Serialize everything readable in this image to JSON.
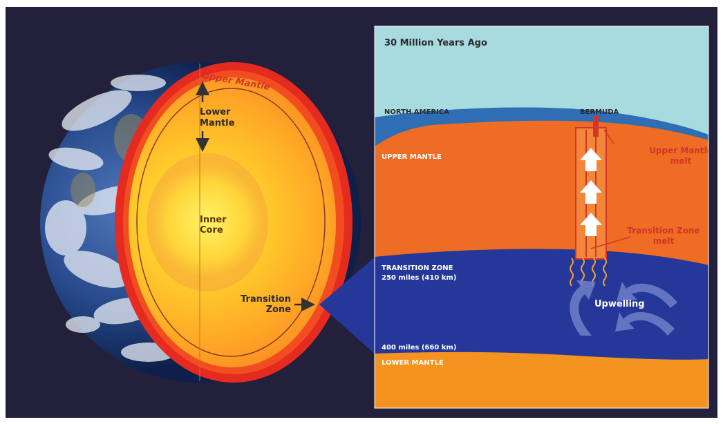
{
  "earth_cutaway": {
    "upper_mantle_label": "Upper Mantle",
    "lower_mantle_label": [
      "Lower",
      "Mantle"
    ],
    "inner_core_label": [
      "Inner",
      "Core"
    ],
    "transition_zone_label": [
      "Transition",
      "Zone"
    ]
  },
  "cross_section": {
    "title": "30 Million Years Ago",
    "north_america_label": "NORTH AMERICA",
    "bermuda_label": "BERMUDA",
    "upper_mantle_label": "UPPER MANTLE",
    "upper_mantle_melt_label": [
      "Upper Mantle",
      "melt"
    ],
    "transition_zone_melt_label": [
      "Transition Zone",
      "melt"
    ],
    "transition_zone_label": "TRANSITION ZONE",
    "transition_depth_label": "250 miles (410 km)",
    "upwelling_label": "Upwelling",
    "lower_depth_label": "400 miles (660 km)",
    "lower_mantle_label": "LOWER MANTLE"
  },
  "colors": {
    "background": "#22203a",
    "sky": "#a8dbe0",
    "crust": "#2f6db5",
    "upper_mantle": "#ee6c24",
    "transition_zone": "#25389a",
    "lower_mantle": "#f4931f",
    "melt": "#d2352a"
  },
  "icons": [
    "arrow-up-icon",
    "arrow-down-icon",
    "arrow-right-icon",
    "white-up-arrow-icon",
    "squiggle-icon",
    "curved-arrow-icon"
  ]
}
